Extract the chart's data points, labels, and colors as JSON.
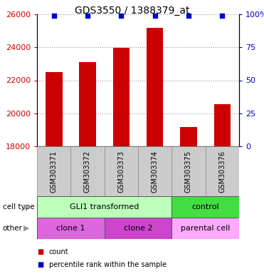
{
  "title": "GDS3550 / 1388379_at",
  "samples": [
    "GSM303371",
    "GSM303372",
    "GSM303373",
    "GSM303374",
    "GSM303375",
    "GSM303376"
  ],
  "counts": [
    22500,
    23100,
    23950,
    25200,
    19150,
    20550
  ],
  "percentile_ranks": [
    99,
    99,
    99,
    99,
    99,
    99
  ],
  "ylim_left": [
    18000,
    26000
  ],
  "ylim_right": [
    0,
    100
  ],
  "yticks_left": [
    18000,
    20000,
    22000,
    24000,
    26000
  ],
  "yticks_right": [
    0,
    25,
    50,
    75,
    100
  ],
  "bar_color": "#cc0000",
  "dot_color": "#0000cc",
  "bar_width": 0.5,
  "cell_type_groups": [
    {
      "label": "GLI1 transformed",
      "samples": [
        0,
        1,
        2,
        3
      ],
      "color": "#bbffbb"
    },
    {
      "label": "control",
      "samples": [
        4,
        5
      ],
      "color": "#44dd44"
    }
  ],
  "other_groups": [
    {
      "label": "clone 1",
      "samples": [
        0,
        1
      ],
      "color": "#dd66dd"
    },
    {
      "label": "clone 2",
      "samples": [
        2,
        3
      ],
      "color": "#cc44cc"
    },
    {
      "label": "parental cell",
      "samples": [
        4,
        5
      ],
      "color": "#ffaaff"
    }
  ],
  "legend_count_label": "count",
  "legend_pct_label": "percentile rank within the sample",
  "background_color": "#ffffff",
  "plot_bg_color": "#ffffff",
  "grid_color": "#999999",
  "tick_area_color": "#cccccc",
  "left_label_color": "#cc0000",
  "right_label_color": "#0000cc"
}
